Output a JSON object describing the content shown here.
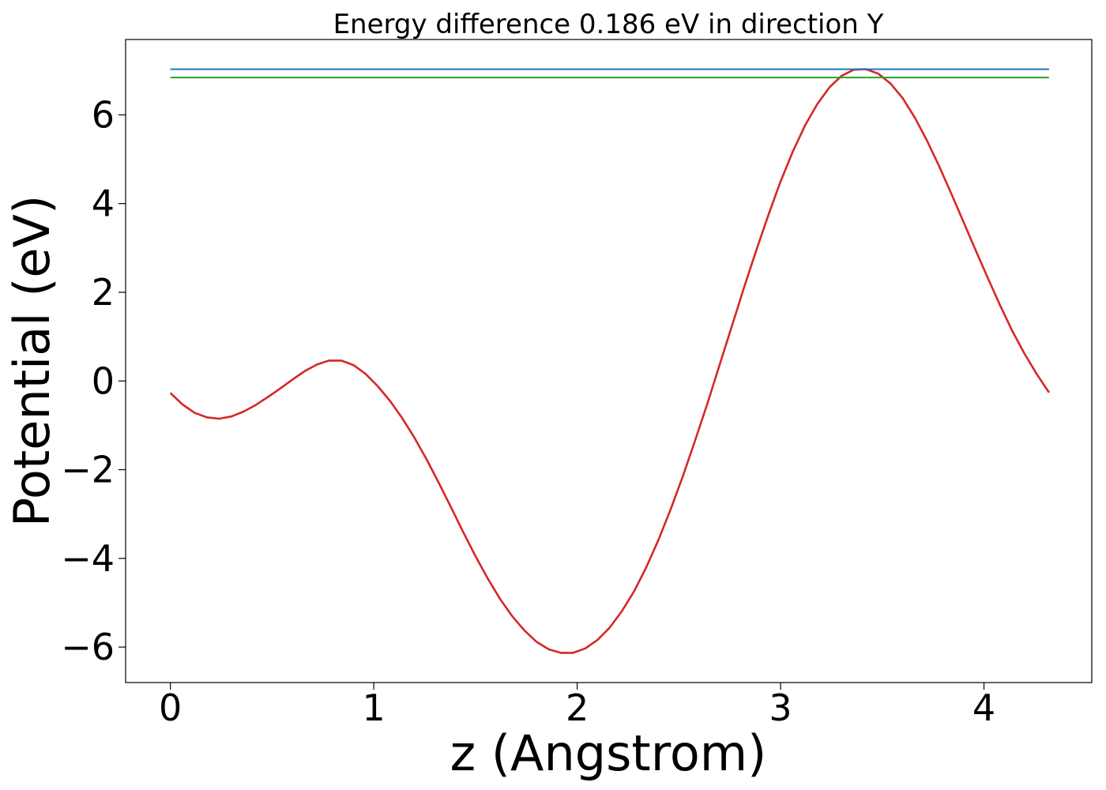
{
  "chart_data": {
    "type": "line",
    "title": "Energy difference 0.186 eV in direction Y",
    "xlabel": "z (Angstrom)",
    "ylabel": "Potential (eV)",
    "xlim": [
      -0.22,
      4.53
    ],
    "ylim": [
      -6.8,
      7.7
    ],
    "xticks": [
      0,
      1,
      2,
      3,
      4
    ],
    "xtick_labels": [
      "0",
      "1",
      "2",
      "3",
      "4"
    ],
    "yticks": [
      -6,
      -4,
      -2,
      0,
      2,
      4,
      6
    ],
    "ytick_labels": [
      "−6",
      "−4",
      "−2",
      "0",
      "2",
      "4",
      "6"
    ],
    "grid": false,
    "legend": "none",
    "series": [
      {
        "color": "#d62728",
        "x": [
          0.0,
          0.06,
          0.12,
          0.18,
          0.24,
          0.3,
          0.36,
          0.42,
          0.48,
          0.54,
          0.6,
          0.66,
          0.72,
          0.78,
          0.84,
          0.9,
          0.96,
          1.02,
          1.08,
          1.14,
          1.2,
          1.26,
          1.32,
          1.38,
          1.44,
          1.5,
          1.56,
          1.62,
          1.68,
          1.74,
          1.8,
          1.86,
          1.92,
          1.98,
          2.04,
          2.1,
          2.16,
          2.22,
          2.28,
          2.34,
          2.4,
          2.46,
          2.52,
          2.58,
          2.64,
          2.7,
          2.76,
          2.82,
          2.88,
          2.94,
          3.0,
          3.06,
          3.12,
          3.18,
          3.24,
          3.3,
          3.36,
          3.42,
          3.48,
          3.54,
          3.6,
          3.66,
          3.72,
          3.78,
          3.84,
          3.9,
          3.96,
          4.02,
          4.08,
          4.14,
          4.2,
          4.26,
          4.32
        ],
        "y": [
          -0.27,
          -0.53,
          -0.72,
          -0.82,
          -0.85,
          -0.8,
          -0.69,
          -0.54,
          -0.36,
          -0.17,
          0.03,
          0.22,
          0.37,
          0.46,
          0.46,
          0.36,
          0.16,
          -0.12,
          -0.45,
          -0.84,
          -1.28,
          -1.77,
          -2.3,
          -2.85,
          -3.41,
          -3.95,
          -4.45,
          -4.91,
          -5.3,
          -5.62,
          -5.88,
          -6.05,
          -6.13,
          -6.13,
          -6.03,
          -5.84,
          -5.56,
          -5.19,
          -4.74,
          -4.2,
          -3.58,
          -2.89,
          -2.14,
          -1.34,
          -0.51,
          0.36,
          1.23,
          2.1,
          2.94,
          3.74,
          4.5,
          5.17,
          5.76,
          6.24,
          6.62,
          6.88,
          7.02,
          7.03,
          6.93,
          6.71,
          6.38,
          5.94,
          5.42,
          4.84,
          4.22,
          3.58,
          2.94,
          2.31,
          1.7,
          1.12,
          0.61,
          0.15,
          -0.26
        ]
      },
      {
        "color": "#1f77b4",
        "x": [
          0.0,
          4.32
        ],
        "y": [
          7.03,
          7.03
        ]
      },
      {
        "color": "#2ca02c",
        "x": [
          0.0,
          4.32
        ],
        "y": [
          6.844,
          6.844
        ]
      }
    ]
  }
}
